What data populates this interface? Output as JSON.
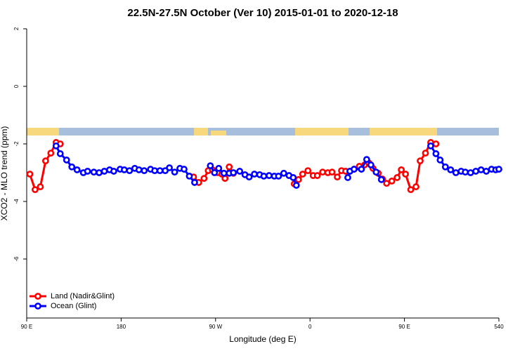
{
  "chart_data": {
    "type": "line",
    "title": "22.5N-27.5N October (Ver 10)   2015-01-01 to 2020-12-18",
    "x_label": "Longitude (deg E)",
    "y_label": "XCO2 - MLO trend (ppm)",
    "xlim": [
      90,
      540
    ],
    "xticks": [
      {
        "value": 90,
        "label": "90 E"
      },
      180,
      {
        "value": 270,
        "label": "90 W"
      },
      {
        "value": 360,
        "label": "0"
      },
      {
        "value": 450,
        "label": "90 E"
      },
      540
    ],
    "ylim": [
      -8.05,
      2
    ],
    "yticks": [
      2,
      0,
      -2,
      -4,
      -6
    ],
    "legend": "bottom-left",
    "series": [
      {
        "name": "Land (Nadir&Glint)",
        "color": "#ff0000",
        "x": [
          93,
          98,
          103,
          108,
          113,
          118,
          122,
          249,
          254,
          259,
          263,
          267,
          272,
          276,
          279,
          283,
          287,
          345,
          349,
          353,
          358,
          363,
          367,
          372,
          377,
          381,
          386,
          390,
          394,
          398,
          402,
          407,
          412,
          416,
          420,
          425,
          429,
          433,
          438,
          443,
          447,
          451,
          456,
          461,
          465,
          470,
          475,
          480
        ],
        "values": [
          -3.05,
          -3.59,
          -3.49,
          -2.59,
          -2.32,
          -1.95,
          -2.0,
          -3.15,
          -3.34,
          -3.2,
          -2.93,
          -2.9,
          -3.0,
          -3.05,
          -3.2,
          -2.8,
          -3.02,
          -3.39,
          -3.24,
          -3.05,
          -2.93,
          -3.1,
          -3.1,
          -2.98,
          -3.0,
          -2.98,
          -3.15,
          -2.93,
          -2.95,
          -2.95,
          -2.88,
          -2.78,
          -2.73,
          -2.66,
          -2.85,
          -3.02,
          -3.22,
          -3.37,
          -3.29,
          -3.17,
          -2.9,
          -3.05,
          -3.59,
          -3.49,
          -2.59,
          -2.32,
          -1.95,
          -2.0
        ]
      },
      {
        "name": "Ocean (Glint)",
        "color": "#0000ff",
        "x": [
          118,
          122,
          128,
          133,
          138,
          144,
          148,
          154,
          159,
          164,
          169,
          173,
          179,
          183,
          188,
          193,
          197,
          202,
          208,
          212,
          217,
          222,
          226,
          231,
          236,
          240,
          245,
          250,
          265,
          269,
          273,
          278,
          283,
          287,
          293,
          298,
          302,
          307,
          312,
          316,
          321,
          326,
          330,
          335,
          340,
          344,
          347,
          396,
          398,
          402,
          409,
          414,
          418,
          423,
          428,
          475,
          480,
          484,
          489,
          494,
          499,
          504,
          508,
          513,
          518,
          523,
          528,
          533,
          537,
          540
        ],
        "values": [
          -2.07,
          -2.34,
          -2.56,
          -2.8,
          -2.9,
          -3.0,
          -2.95,
          -2.98,
          -3.0,
          -2.95,
          -2.9,
          -2.95,
          -2.88,
          -2.9,
          -2.93,
          -2.85,
          -2.9,
          -2.93,
          -2.88,
          -2.93,
          -2.93,
          -2.93,
          -2.83,
          -2.98,
          -2.85,
          -2.88,
          -3.12,
          -3.34,
          -2.76,
          -3.0,
          -2.85,
          -3.02,
          -3.02,
          -3.0,
          -2.95,
          -3.07,
          -3.15,
          -3.05,
          -3.07,
          -3.12,
          -3.1,
          -3.12,
          -3.12,
          -3.02,
          -3.1,
          -3.17,
          -3.44,
          -3.17,
          -2.95,
          -2.88,
          -2.88,
          -2.54,
          -2.73,
          -2.98,
          -3.24,
          -2.07,
          -2.34,
          -2.56,
          -2.8,
          -2.9,
          -3.0,
          -2.95,
          -2.98,
          -3.0,
          -2.95,
          -2.9,
          -2.95,
          -2.88,
          -2.9,
          -2.88
        ]
      }
    ]
  }
}
